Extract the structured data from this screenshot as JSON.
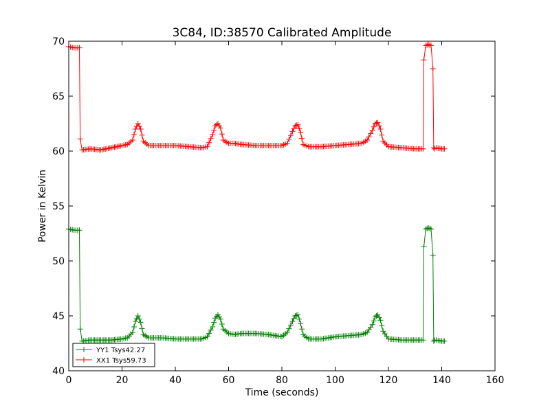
{
  "chart_data": {
    "type": "line",
    "title": "3C84, ID:38570 Calibrated Amplitude",
    "xlabel": "Time (seconds)",
    "ylabel": "Power in Kelvin",
    "xlim": [
      0,
      160
    ],
    "ylim": [
      40,
      70
    ],
    "xticks": [
      0,
      20,
      40,
      60,
      80,
      100,
      120,
      140,
      160
    ],
    "yticks": [
      40,
      45,
      50,
      55,
      60,
      65,
      70
    ],
    "grid": false,
    "legend_position": "lower-left",
    "marker": "+",
    "series": [
      {
        "name": "YY1 Tsys42.27",
        "color": "#008000",
        "x": [
          0,
          2,
          4,
          4.3,
          5,
          8,
          12,
          16,
          20,
          22,
          24,
          25,
          26,
          27,
          28,
          30,
          35,
          40,
          45,
          50,
          52,
          54,
          55,
          56,
          57,
          58,
          60,
          62,
          65,
          70,
          75,
          80,
          82,
          84,
          85,
          86,
          87,
          88,
          90,
          95,
          100,
          105,
          110,
          112,
          114,
          115,
          116,
          117,
          118,
          120,
          125,
          130,
          133,
          133.3,
          134,
          135,
          136,
          136.7,
          137,
          137.3,
          138,
          140,
          141
        ],
        "values": [
          52.9,
          52.8,
          52.8,
          43.8,
          42.7,
          42.8,
          42.8,
          42.8,
          42.9,
          43.0,
          43.5,
          44.5,
          45.0,
          44.4,
          43.3,
          43.0,
          43.0,
          42.9,
          42.9,
          42.9,
          43.1,
          44.0,
          44.8,
          45.1,
          44.7,
          43.8,
          43.4,
          43.3,
          43.4,
          43.4,
          43.3,
          43.1,
          43.5,
          44.5,
          45.0,
          45.1,
          44.3,
          43.3,
          42.9,
          42.9,
          43.1,
          43.2,
          43.3,
          43.5,
          44.2,
          44.9,
          45.1,
          44.6,
          43.6,
          42.9,
          42.8,
          42.8,
          42.8,
          51.3,
          52.9,
          53.0,
          52.9,
          50.5,
          42.7,
          42.8,
          42.8,
          42.7,
          42.7
        ]
      },
      {
        "name": "XX1 Tsys59.73",
        "color": "#ff0000",
        "x": [
          0,
          2,
          4,
          4.3,
          5,
          8,
          12,
          16,
          20,
          22,
          24,
          25,
          26,
          27,
          28,
          30,
          35,
          40,
          45,
          50,
          52,
          54,
          55,
          56,
          57,
          58,
          60,
          62,
          65,
          70,
          75,
          80,
          82,
          84,
          85,
          86,
          87,
          88,
          90,
          95,
          100,
          105,
          110,
          112,
          114,
          115,
          116,
          117,
          118,
          120,
          125,
          130,
          133,
          133.3,
          134,
          135,
          136,
          136.7,
          137,
          137.3,
          138,
          140,
          141
        ],
        "values": [
          69.5,
          69.4,
          69.4,
          61.1,
          60.1,
          60.2,
          60.1,
          60.3,
          60.5,
          60.6,
          61.0,
          62.0,
          62.5,
          62.0,
          60.9,
          60.5,
          60.5,
          60.5,
          60.4,
          60.3,
          60.4,
          61.5,
          62.3,
          62.5,
          62.1,
          61.0,
          60.7,
          60.7,
          60.6,
          60.5,
          60.5,
          60.5,
          60.7,
          61.8,
          62.3,
          62.4,
          61.7,
          60.6,
          60.4,
          60.4,
          60.5,
          60.6,
          60.7,
          61.0,
          61.9,
          62.5,
          62.6,
          62.0,
          60.9,
          60.4,
          60.3,
          60.2,
          60.2,
          68.3,
          69.6,
          69.7,
          69.6,
          67.5,
          60.3,
          60.2,
          60.3,
          60.2,
          60.2
        ]
      }
    ]
  }
}
